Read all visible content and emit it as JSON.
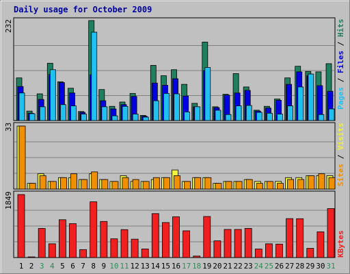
{
  "title": "Daily usage for October 2009",
  "colors": {
    "bg": "#C0C0C0",
    "title": "#0000A0",
    "hits": "#1F7F5F",
    "files": "#0000E0",
    "pages": "#20C0F0",
    "visits": "#F0F040",
    "sites": "#F09000",
    "kbytes": "#F02020",
    "weekend": "#2E8B57",
    "weekday": "#000000"
  },
  "chart_data": [
    {
      "type": "bar",
      "panel": "top",
      "ymax_label": "232",
      "ymax": 232,
      "legend": [
        {
          "text": "Pages",
          "key": "pages"
        },
        {
          "text": " / ",
          "key": "sep"
        },
        {
          "text": "Files",
          "key": "files"
        },
        {
          "text": " / ",
          "key": "sep"
        },
        {
          "text": "Hits",
          "key": "hits"
        }
      ],
      "categories": [
        "1",
        "2",
        "3",
        "4",
        "5",
        "6",
        "7",
        "8",
        "9",
        "10",
        "11",
        "12",
        "13",
        "14",
        "15",
        "16",
        "17",
        "18",
        "19",
        "20",
        "21",
        "22",
        "23",
        "24",
        "25",
        "26",
        "27",
        "28",
        "29",
        "30",
        "31"
      ],
      "series": [
        {
          "name": "Hits",
          "key": "hits",
          "values": [
            99,
            22,
            62,
            133,
            90,
            75,
            21,
            232,
            72,
            33,
            43,
            63,
            12,
            128,
            104,
            118,
            84,
            40,
            182,
            32,
            61,
            109,
            78,
            24,
            33,
            50,
            99,
            126,
            114,
            113,
            132
          ]
        },
        {
          "name": "Files",
          "key": "files",
          "values": [
            79,
            17,
            49,
            107,
            88,
            64,
            19,
            106,
            46,
            27,
            37,
            56,
            10,
            87,
            82,
            97,
            57,
            32,
            116,
            30,
            59,
            64,
            70,
            22,
            29,
            47,
            84,
            113,
            104,
            81,
            68
          ]
        },
        {
          "name": "Pages",
          "key": "pages",
          "values": [
            64,
            16,
            32,
            118,
            37,
            34,
            15,
            205,
            32,
            11,
            33,
            15,
            8,
            46,
            63,
            62,
            20,
            32,
            123,
            24,
            14,
            34,
            35,
            19,
            17,
            15,
            34,
            78,
            108,
            14,
            27
          ]
        }
      ]
    },
    {
      "type": "bar",
      "panel": "middle",
      "ymax_label": "33",
      "ymax": 33,
      "legend": [
        {
          "text": "Sites",
          "key": "sites"
        },
        {
          "text": " / ",
          "key": "sep"
        },
        {
          "text": "Visits",
          "key": "visits"
        }
      ],
      "categories": [
        "1",
        "2",
        "3",
        "4",
        "5",
        "6",
        "7",
        "8",
        "9",
        "10",
        "11",
        "12",
        "13",
        "14",
        "15",
        "16",
        "17",
        "18",
        "19",
        "20",
        "21",
        "22",
        "23",
        "24",
        "25",
        "26",
        "27",
        "28",
        "29",
        "30",
        "31"
      ],
      "series": [
        {
          "name": "Visits",
          "key": "visits",
          "values": [
            33,
            3,
            8,
            4,
            6,
            6,
            5,
            8,
            5,
            4,
            7,
            4,
            4,
            5,
            6,
            10,
            4,
            6,
            6,
            3,
            4,
            4,
            5,
            4,
            4,
            4,
            6,
            6,
            7,
            7,
            7
          ]
        },
        {
          "name": "Sites",
          "key": "sites",
          "values": [
            33,
            3,
            7,
            4,
            6,
            8,
            5,
            9,
            5,
            4,
            6,
            5,
            4,
            6,
            6,
            7,
            4,
            6,
            6,
            3,
            4,
            4,
            5,
            3,
            4,
            3,
            5,
            5,
            7,
            8,
            6
          ]
        }
      ]
    },
    {
      "type": "bar",
      "panel": "bottom",
      "ymax_label": "1849",
      "ymax": 1849,
      "legend": [
        {
          "text": "KBytes",
          "key": "kbytes"
        }
      ],
      "categories": [
        "1",
        "2",
        "3",
        "4",
        "5",
        "6",
        "7",
        "8",
        "9",
        "10",
        "11",
        "12",
        "13",
        "14",
        "15",
        "16",
        "17",
        "18",
        "19",
        "20",
        "21",
        "22",
        "23",
        "24",
        "25",
        "26",
        "27",
        "28",
        "29",
        "30",
        "31"
      ],
      "series": [
        {
          "name": "KBytes",
          "key": "kbytes",
          "values": [
            1849,
            20,
            855,
            404,
            1110,
            995,
            234,
            1636,
            1060,
            550,
            820,
            540,
            252,
            1290,
            1028,
            1196,
            785,
            44,
            1205,
            491,
            825,
            825,
            856,
            251,
            404,
            395,
            1143,
            1140,
            270,
            755,
            1437
          ]
        }
      ]
    }
  ],
  "days": [
    "1",
    "2",
    "3",
    "4",
    "5",
    "6",
    "7",
    "8",
    "9",
    "10",
    "11",
    "12",
    "13",
    "14",
    "15",
    "16",
    "17",
    "18",
    "19",
    "20",
    "21",
    "22",
    "23",
    "24",
    "25",
    "26",
    "27",
    "28",
    "29",
    "30",
    "31"
  ],
  "weekend_days": [
    "3",
    "4",
    "10",
    "11",
    "17",
    "18",
    "24",
    "25",
    "31"
  ]
}
